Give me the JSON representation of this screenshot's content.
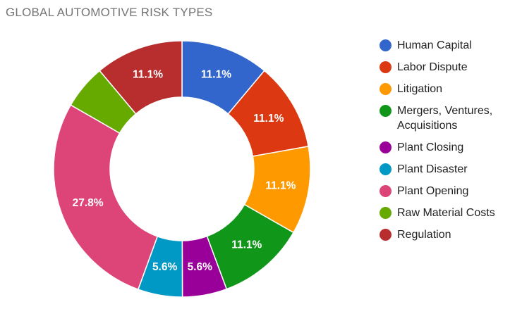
{
  "chart_data": {
    "type": "pie",
    "variant": "donut",
    "title": "GLOBAL AUTOMOTIVE RISK TYPES",
    "legend_position": "right",
    "slices": [
      {
        "label": "Human Capital",
        "value": 11.1,
        "display": "11.1%",
        "color": "#3366cc",
        "multiline": [
          "Human Capital"
        ]
      },
      {
        "label": "Labor Dispute",
        "value": 11.1,
        "display": "11.1%",
        "color": "#dc3912",
        "multiline": [
          "Labor Dispute"
        ]
      },
      {
        "label": "Litigation",
        "value": 11.1,
        "display": "11.1%",
        "color": "#ff9900",
        "multiline": [
          "Litigation"
        ]
      },
      {
        "label": "Mergers, Ventures, Acquisitions",
        "value": 11.1,
        "display": "11.1%",
        "color": "#109618",
        "multiline": [
          "Mergers, Ventures,",
          "Acquisitions"
        ]
      },
      {
        "label": "Plant Closing",
        "value": 5.6,
        "display": "5.6%",
        "color": "#990099",
        "multiline": [
          "Plant Closing"
        ]
      },
      {
        "label": "Plant Disaster",
        "value": 5.6,
        "display": "5.6%",
        "color": "#0099c6",
        "multiline": [
          "Plant Disaster"
        ]
      },
      {
        "label": "Plant Opening",
        "value": 27.8,
        "display": "27.8%",
        "color": "#dd4477",
        "multiline": [
          "Plant Opening"
        ]
      },
      {
        "label": "Raw Material Costs",
        "value": 5.6,
        "display": "",
        "color": "#66aa00",
        "multiline": [
          "Raw Material Costs"
        ]
      },
      {
        "label": "Regulation",
        "value": 11.1,
        "display": "11.1%",
        "color": "#b82e2e",
        "multiline": [
          "Regulation"
        ]
      }
    ]
  }
}
